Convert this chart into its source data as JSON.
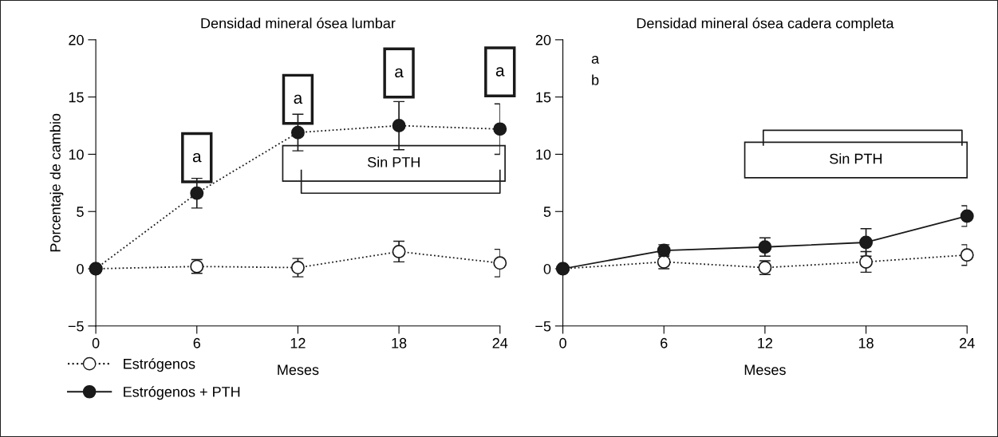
{
  "chart_data": [
    {
      "type": "line",
      "title": "Densidad mineral ósea lumbar",
      "xlabel": "Meses",
      "ylabel": "Porcentaje de cambio",
      "x": [
        0,
        6,
        12,
        18,
        24
      ],
      "xlim": [
        0,
        24
      ],
      "xticks": [
        0,
        6,
        12,
        18,
        24
      ],
      "ylim": [
        -5,
        20
      ],
      "yticks": [
        {
          "value": -5,
          "label": "−5"
        },
        0,
        5,
        10,
        15,
        20
      ],
      "grid": false,
      "marker": "circle",
      "series": [
        {
          "color": "#ffffff",
          "line_style": "dotted",
          "values": [
            0,
            0.2,
            0.1,
            1.5,
            0.5
          ],
          "errors": [
            null,
            0.6,
            0.8,
            0.9,
            1.2
          ]
        },
        {
          "color": "#1a1a1a",
          "line_style": "dotted",
          "values": [
            0,
            6.6,
            11.9,
            12.5,
            12.2
          ],
          "errors": [
            null,
            1.3,
            1.6,
            2.1,
            2.2
          ]
        }
      ],
      "annotations": [
        "a",
        "a",
        "a",
        "a",
        "Sin PTH"
      ]
    },
    {
      "type": "line",
      "title": "Densidad mineral ósea cadera completa",
      "xlabel": "Meses",
      "x": [
        0,
        6,
        12,
        18,
        24
      ],
      "xlim": [
        0,
        24
      ],
      "xticks": [
        0,
        6,
        12,
        18,
        24
      ],
      "ylim": [
        -5,
        20
      ],
      "yticks": [
        {
          "value": -5,
          "label": "−5"
        },
        0,
        5,
        10,
        15,
        20
      ],
      "grid": false,
      "legend": "bottom left",
      "marker": "circle",
      "series": [
        {
          "name": "Estrógenos",
          "color": "#ffffff",
          "line_style": "dotted",
          "values": [
            0,
            0.6,
            0.1,
            0.6,
            1.2
          ],
          "errors": [
            null,
            0.6,
            0.6,
            0.9,
            0.9
          ]
        },
        {
          "name": "Estrógenos + PTH",
          "color": "#1a1a1a",
          "line_style": "solid",
          "values": [
            0,
            1.6,
            1.9,
            2.3,
            4.6
          ],
          "errors": [
            null,
            0.5,
            0.8,
            1.2,
            0.9
          ]
        }
      ],
      "annotations": [
        "a",
        "b",
        "Sin PTH"
      ]
    }
  ]
}
